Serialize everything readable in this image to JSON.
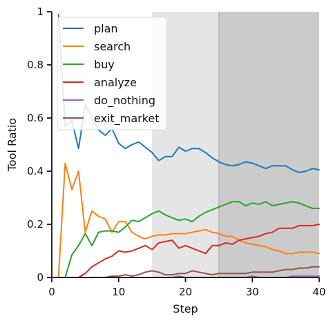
{
  "chart_data": {
    "type": "line",
    "xlabel": "Step",
    "ylabel": "Tool Ratio",
    "xlim": [
      0,
      40
    ],
    "ylim": [
      0,
      1
    ],
    "xticks": [
      0,
      10,
      20,
      30,
      40
    ],
    "xtick_labels": [
      "0",
      "10",
      "20",
      "30",
      "40"
    ],
    "yticks": [
      0,
      0.2,
      0.4,
      0.6,
      0.8,
      1
    ],
    "ytick_labels": [
      "0",
      "0.2",
      "0.4",
      "0.6",
      "0.8",
      "1"
    ],
    "grid": false,
    "legend_position": "top-left",
    "shaded_regions": [
      {
        "x": [
          15,
          25
        ],
        "color": "#e5e5e5"
      },
      {
        "x": [
          25,
          40
        ],
        "color": "#cbcbcb"
      }
    ],
    "x": [
      1,
      2,
      3,
      4,
      5,
      6,
      7,
      8,
      9,
      10,
      11,
      12,
      13,
      14,
      15,
      16,
      17,
      18,
      19,
      20,
      21,
      22,
      23,
      24,
      25,
      26,
      27,
      28,
      29,
      30,
      31,
      32,
      33,
      34,
      35,
      36,
      37,
      38,
      39,
      40
    ],
    "series": [
      {
        "name": "plan",
        "color": "#1f77b4",
        "values": [
          0.99,
          0.57,
          0.59,
          0.485,
          0.65,
          0.6,
          0.555,
          0.535,
          0.56,
          0.505,
          0.485,
          0.5,
          0.51,
          0.49,
          0.47,
          0.44,
          0.455,
          0.455,
          0.49,
          0.475,
          0.485,
          0.485,
          0.47,
          0.45,
          0.435,
          0.425,
          0.42,
          0.425,
          0.435,
          0.43,
          0.42,
          0.41,
          0.42,
          0.42,
          0.42,
          0.405,
          0.395,
          0.4,
          0.41,
          0.405
        ]
      },
      {
        "name": "search",
        "color": "#ff7f0e",
        "values": [
          0.0,
          0.43,
          0.33,
          0.4,
          0.17,
          0.25,
          0.23,
          0.22,
          0.17,
          0.21,
          0.21,
          0.17,
          0.155,
          0.145,
          0.155,
          0.16,
          0.16,
          0.165,
          0.165,
          0.165,
          0.17,
          0.175,
          0.18,
          0.17,
          0.165,
          0.155,
          0.155,
          0.14,
          0.13,
          0.125,
          0.12,
          0.115,
          0.105,
          0.1,
          0.09,
          0.09,
          0.095,
          0.095,
          0.095,
          0.09
        ]
      },
      {
        "name": "buy",
        "color": "#2ca02c",
        "values": [
          0.0,
          0.0,
          0.085,
          0.12,
          0.165,
          0.12,
          0.17,
          0.175,
          0.175,
          0.17,
          0.19,
          0.215,
          0.21,
          0.225,
          0.24,
          0.25,
          0.235,
          0.225,
          0.215,
          0.22,
          0.21,
          0.23,
          0.245,
          0.255,
          0.265,
          0.275,
          0.285,
          0.285,
          0.27,
          0.28,
          0.275,
          0.285,
          0.27,
          0.275,
          0.28,
          0.285,
          0.28,
          0.27,
          0.26,
          0.26
        ]
      },
      {
        "name": "analyze",
        "color": "#d62728",
        "values": [
          0.0,
          0.0,
          0.0,
          0.0,
          0.015,
          0.04,
          0.055,
          0.07,
          0.08,
          0.1,
          0.095,
          0.1,
          0.11,
          0.12,
          0.105,
          0.13,
          0.135,
          0.14,
          0.11,
          0.12,
          0.11,
          0.1,
          0.09,
          0.12,
          0.12,
          0.13,
          0.125,
          0.14,
          0.145,
          0.15,
          0.155,
          0.165,
          0.17,
          0.185,
          0.185,
          0.185,
          0.195,
          0.195,
          0.195,
          0.2
        ]
      },
      {
        "name": "do_nothing",
        "color": "#9467bd",
        "values": [
          0,
          0,
          0,
          0,
          0,
          0,
          0,
          0,
          0,
          0,
          0,
          0,
          0,
          0,
          0,
          0,
          0,
          0,
          0.005,
          0,
          0,
          0,
          0,
          0,
          0,
          0,
          0,
          0,
          0,
          0.005,
          0,
          0,
          0,
          0,
          0,
          0.005,
          0.005,
          0.005,
          0.005,
          0.005
        ]
      },
      {
        "name": "exit_market",
        "color": "#8c564b",
        "values": [
          0,
          0,
          0,
          0,
          0,
          0,
          0,
          0,
          0.005,
          0.005,
          0.01,
          0.005,
          0.01,
          0.02,
          0.025,
          0.02,
          0.01,
          0.01,
          0.015,
          0.015,
          0.025,
          0.02,
          0.015,
          0.01,
          0.015,
          0.015,
          0.015,
          0.015,
          0.015,
          0.02,
          0.02,
          0.02,
          0.02,
          0.025,
          0.03,
          0.03,
          0.035,
          0.035,
          0.04,
          0.04
        ]
      }
    ]
  }
}
